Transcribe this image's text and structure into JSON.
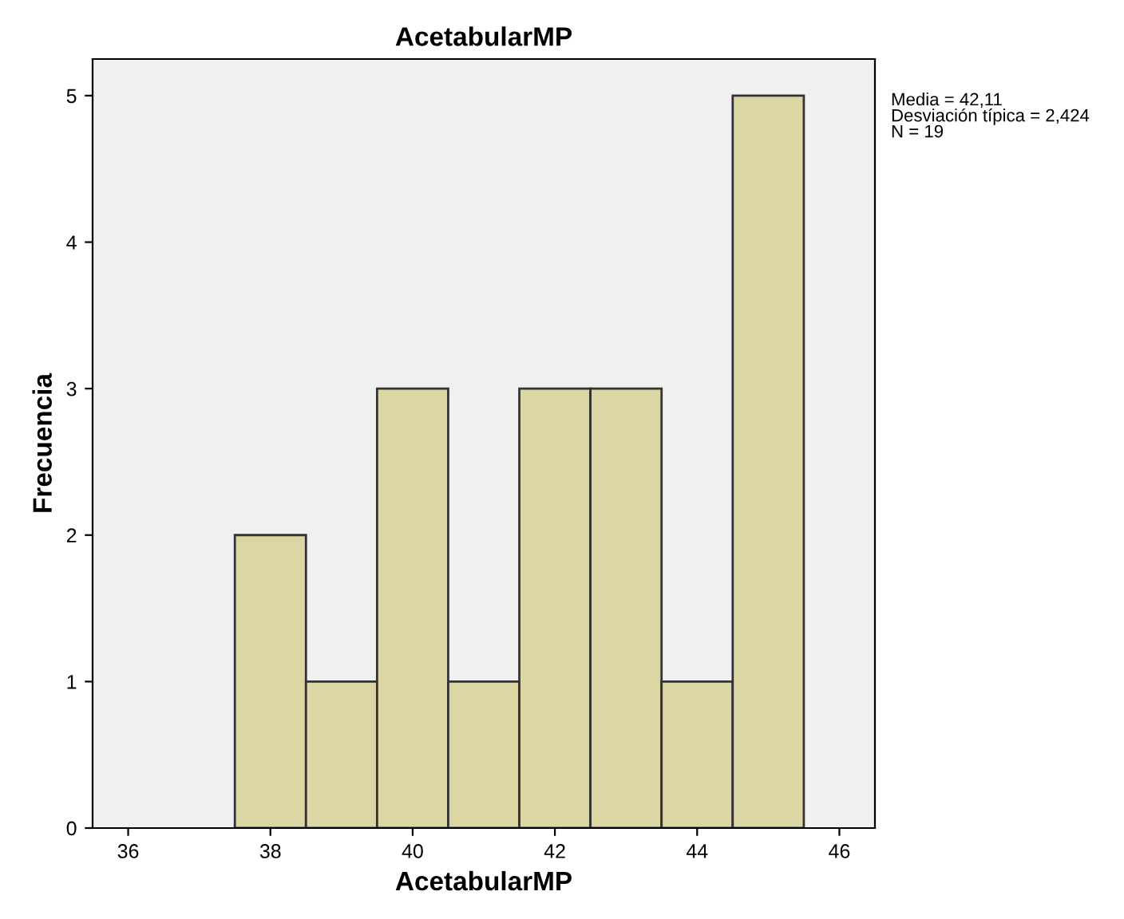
{
  "chart_data": {
    "type": "histogram",
    "title": "AcetabularMP",
    "xlabel": "AcetabularMP",
    "ylabel": "Frecuencia",
    "bins": [
      37.5,
      38.5,
      39.5,
      40.5,
      41.5,
      42.5,
      43.5,
      44.5,
      45.5
    ],
    "values": [
      2,
      1,
      3,
      1,
      3,
      3,
      1,
      5
    ],
    "color": "#dcd6a5",
    "xlim": [
      35.5,
      46.5
    ],
    "xticks": [
      36,
      38,
      40,
      42,
      44,
      46
    ],
    "ylim": [
      0,
      5.25
    ],
    "yticks": [
      0,
      1,
      2,
      3,
      4,
      5
    ],
    "annotations": [
      "Media = 42,11\nDesviación típica = 2,424\nN = 19"
    ],
    "grid": false
  }
}
